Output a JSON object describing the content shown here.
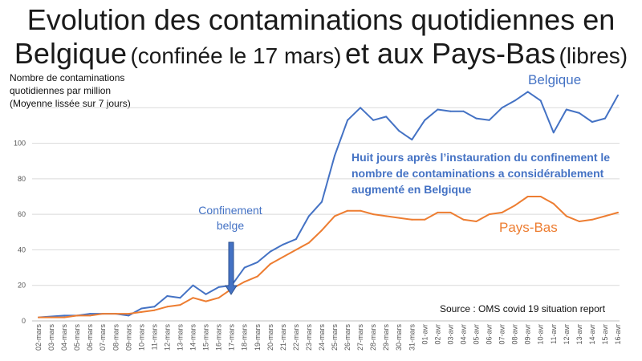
{
  "title": {
    "line1": "Evolution des contaminations quotidiennes en",
    "line2_a": "Belgique",
    "line2_b": "(confinée le 17 mars)",
    "line2_c": "et aux Pays-Bas",
    "line2_d": "(libres)"
  },
  "ylabel": {
    "line1": "Nombre de contaminations",
    "line2": "quotidiennes par million",
    "line3": "(Moyenne lissée sur 7 jours)"
  },
  "annotations": {
    "highlight": [
      "Huit jours après l’instauration du confinement le",
      "nombre de contaminations a considérablement",
      "augmenté en Belgique"
    ],
    "lockdown": [
      "Confinement",
      "belge"
    ],
    "source": "Source : OMS covid 19 situation report"
  },
  "chart_data": {
    "type": "line",
    "categories": [
      "02-mars",
      "03-mars",
      "04-mars",
      "05-mars",
      "06-mars",
      "07-mars",
      "08-mars",
      "09-mars",
      "10-mars",
      "11-mars",
      "12-mars",
      "13-mars",
      "14-mars",
      "15-mars",
      "16-mars",
      "17-mars",
      "18-mars",
      "19-mars",
      "20-mars",
      "21-mars",
      "22-mars",
      "23-mars",
      "24-mars",
      "25-mars",
      "26-mars",
      "27-mars",
      "28-mars",
      "29-mars",
      "30-mars",
      "31-mars",
      "01-avr",
      "02-avr",
      "03-avr",
      "04-avr",
      "05-avr",
      "06-avr",
      "07-avr",
      "08-avr",
      "09-avr",
      "10-avr",
      "11-avr",
      "12-avr",
      "13-avr",
      "14-avr",
      "15-avr",
      "16-avr"
    ],
    "series": [
      {
        "name": "Belgique",
        "color": "#4472c4",
        "values": [
          2,
          2.5,
          3,
          3,
          4,
          4,
          4,
          3,
          7,
          8,
          14,
          13,
          20,
          15,
          19,
          20,
          30,
          33,
          39,
          43,
          46,
          59,
          67,
          93,
          113,
          120,
          113,
          115,
          107,
          102,
          113,
          119,
          118,
          118,
          114,
          113,
          120,
          124,
          129,
          124,
          106,
          119,
          117,
          112,
          114,
          127
        ]
      },
      {
        "name": "Pays-Bas",
        "color": "#ed7d31",
        "values": [
          2,
          2,
          2,
          3,
          3,
          4,
          4,
          4,
          5,
          6,
          8,
          9,
          13,
          11,
          13,
          18,
          22,
          25,
          32,
          36,
          40,
          44,
          51,
          59,
          62,
          62,
          60,
          59,
          58,
          57,
          57,
          61,
          61,
          57,
          56,
          60,
          61,
          65,
          70,
          70,
          66,
          59,
          56,
          57,
          59,
          61
        ]
      }
    ],
    "ylim": [
      0,
      140
    ],
    "yticks": [
      0,
      20,
      40,
      60,
      80,
      100
    ],
    "grid": true,
    "legend": "inline labels"
  }
}
